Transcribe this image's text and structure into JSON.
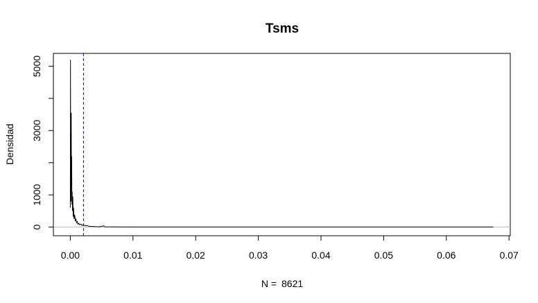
{
  "chart_data": {
    "type": "line",
    "title": "Tsms",
    "xlabel_prefix": "N =",
    "xlabel_value": "8621",
    "ylabel": "Densidad",
    "xlim": [
      -0.0027,
      0.0702
    ],
    "ylim": [
      -270,
      5400
    ],
    "x_ticks": [
      0.0,
      0.01,
      0.02,
      0.03,
      0.04,
      0.05,
      0.06,
      0.07
    ],
    "x_tick_labels": [
      "0.00",
      "0.01",
      "0.02",
      "0.03",
      "0.04",
      "0.05",
      "0.06",
      "0.07"
    ],
    "y_ticks": [
      0,
      1000,
      2000,
      3000,
      4000,
      5000
    ],
    "y_tick_labels": [
      "0",
      "1000",
      "",
      "3000",
      "",
      "5000"
    ],
    "baseline": 0,
    "vline": {
      "x": 0.0021,
      "color": "#0000cc",
      "style": "dashed"
    },
    "series": [
      {
        "color": "#000000",
        "points": [
          [
            0.0,
            600
          ],
          [
            3e-05,
            5200
          ],
          [
            6e-05,
            1500
          ],
          [
            9e-05,
            2900
          ],
          [
            0.00012,
            800
          ],
          [
            0.00015,
            3550
          ],
          [
            0.00018,
            1300
          ],
          [
            0.00022,
            2200
          ],
          [
            0.00026,
            700
          ],
          [
            0.0003,
            1100
          ],
          [
            0.00035,
            500
          ],
          [
            0.0004,
            950
          ],
          [
            0.00046,
            320
          ],
          [
            0.00052,
            600
          ],
          [
            0.0006,
            250
          ],
          [
            0.0007,
            380
          ],
          [
            0.0008,
            180
          ],
          [
            0.0009,
            260
          ],
          [
            0.001,
            140
          ],
          [
            0.0011,
            170
          ],
          [
            0.0012,
            90
          ],
          [
            0.00135,
            120
          ],
          [
            0.0015,
            70
          ],
          [
            0.0017,
            90
          ],
          [
            0.0019,
            50
          ],
          [
            0.0021,
            65
          ],
          [
            0.0024,
            40
          ],
          [
            0.0027,
            45
          ],
          [
            0.003,
            25
          ],
          [
            0.0034,
            20
          ],
          [
            0.004,
            12
          ],
          [
            0.0048,
            10
          ],
          [
            0.0053,
            40
          ],
          [
            0.0055,
            8
          ],
          [
            0.007,
            5
          ],
          [
            0.01,
            3
          ],
          [
            0.02,
            2
          ],
          [
            0.03,
            2
          ],
          [
            0.04,
            1
          ],
          [
            0.05,
            1
          ],
          [
            0.06,
            1
          ],
          [
            0.0675,
            1
          ]
        ]
      }
    ]
  }
}
